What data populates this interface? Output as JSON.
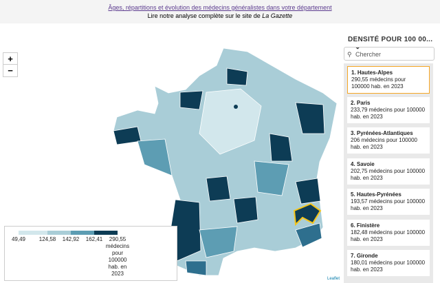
{
  "header": {
    "title": "Âges, répartitions et évolution des médecins généralistes dans votre département",
    "subtitle": "Lire notre analyse complète sur le site de",
    "subtitle_source": "La Gazette"
  },
  "controls": {
    "zoom_in": "+",
    "zoom_out": "−",
    "indicator": "DENSITÉ POUR 100 00...",
    "search_placeholder": "Chercher"
  },
  "ranking": [
    {
      "name": "1. Hautes-Alpes",
      "text": "290,55 médecins pour 100000 hab. en 2023"
    },
    {
      "name": "2. Paris",
      "text": "233,79 médecins pour 100000 hab. en 2023"
    },
    {
      "name": "3. Pyrénées-Atlantiques",
      "text": "206 médecins pour 100000 hab. en 2023"
    },
    {
      "name": "4. Savoie",
      "text": "202,75 médecins pour 100000 hab. en 2023"
    },
    {
      "name": "5. Hautes-Pyrénées",
      "text": "193,57 médecins pour 100000 hab. en 2023"
    },
    {
      "name": "6. Finistère",
      "text": "182,48 médecins pour 100000 hab. en 2023"
    },
    {
      "name": "7. Gironde",
      "text": "180,01 médecins pour 100000 hab. en 2023"
    }
  ],
  "legend": {
    "breaks": [
      "49,49",
      "124,58",
      "142,92",
      "162,41",
      "290,55"
    ],
    "unit": "médecins pour 100000 hab. en 2023"
  },
  "attribution": "Leaflet"
}
